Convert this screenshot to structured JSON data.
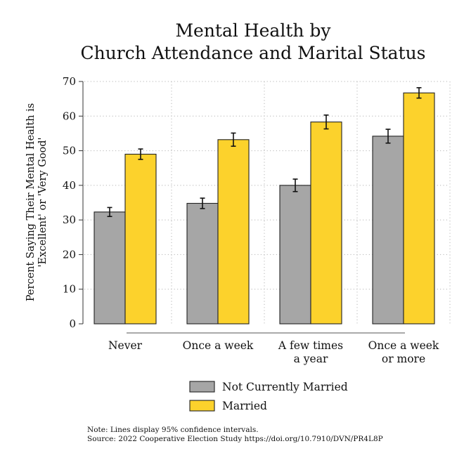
{
  "chart_data": {
    "type": "bar",
    "title": [
      "Mental Health by",
      "Church Attendance and Marital Status"
    ],
    "ylabel": [
      "Percent Saying Their Mental Health is",
      "'Excellent' or 'Very Good'"
    ],
    "xlabel": "",
    "ylim": [
      0,
      70
    ],
    "yticks": [
      0,
      10,
      20,
      30,
      40,
      50,
      60,
      70
    ],
    "grid": "dotted",
    "legend_position": "bottom",
    "categories": [
      [
        "Never"
      ],
      [
        "Once a week"
      ],
      [
        "A few times",
        "a year"
      ],
      [
        "Once a week",
        "or more"
      ]
    ],
    "series": [
      {
        "name": "Not Currently Married",
        "color": "#a6a6a6",
        "values": [
          32.3,
          34.8,
          40.0,
          54.2
        ],
        "ci_low": [
          31.0,
          33.3,
          38.2,
          52.2
        ],
        "ci_high": [
          33.6,
          36.3,
          41.8,
          56.2
        ]
      },
      {
        "name": "Married",
        "color": "#fcd22c",
        "values": [
          49.0,
          53.2,
          58.3,
          66.7
        ],
        "ci_low": [
          47.5,
          51.3,
          56.3,
          65.2
        ],
        "ci_high": [
          50.5,
          55.1,
          60.3,
          68.2
        ]
      }
    ]
  },
  "note": {
    "line1": "Note: Lines display 95% confidence intervals.",
    "line2": "Source: 2022 Cooperative Election Study https://doi.org/10.7910/DVN/PR4L8P"
  }
}
